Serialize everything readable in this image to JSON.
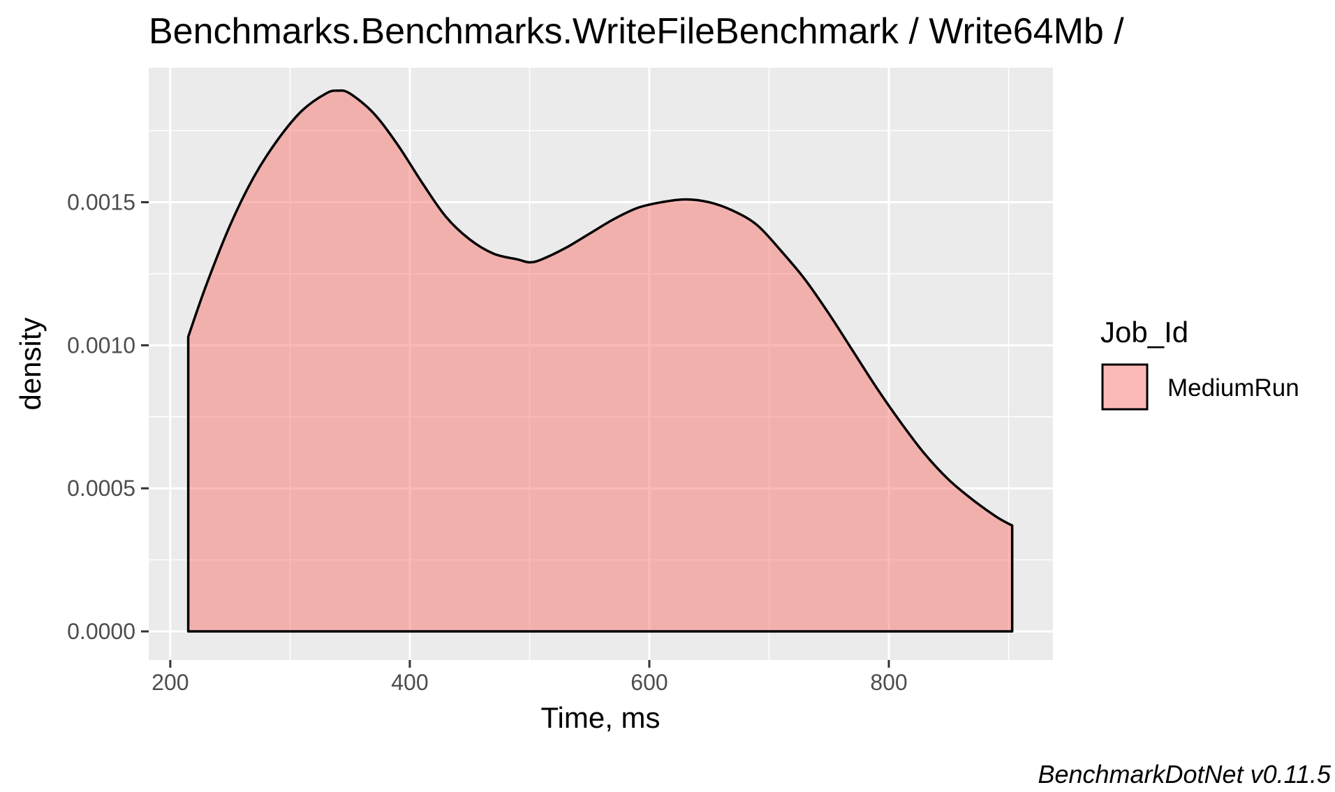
{
  "chart_data": {
    "type": "area",
    "title": "Benchmarks.Benchmarks.WriteFileBenchmark / Write64Mb /",
    "xlabel": "Time, ms",
    "ylabel": "density",
    "caption": "BenchmarkDotNet v0.11.5",
    "xlim": [
      182,
      937
    ],
    "ylim": [
      -0.0001,
      0.00197
    ],
    "x_ticks": [
      200,
      400,
      600,
      800
    ],
    "x_tick_labels": [
      "200",
      "400",
      "600",
      "800"
    ],
    "y_ticks": [
      0,
      0.0005,
      0.001,
      0.0015
    ],
    "y_tick_labels": [
      "0.0000",
      "0.0005",
      "0.0010",
      "0.0015"
    ],
    "grid": true,
    "legend": {
      "title": "Job_Id",
      "position": "right",
      "entries": [
        "MediumRun"
      ]
    },
    "series": [
      {
        "name": "MediumRun",
        "fill": "#F8766D",
        "fill_opacity": 0.5,
        "outline": "#000000",
        "x": [
          215,
          230,
          250,
          270,
          290,
          310,
          330,
          340,
          350,
          370,
          390,
          410,
          430,
          450,
          470,
          490,
          500,
          510,
          530,
          550,
          570,
          590,
          610,
          630,
          650,
          670,
          690,
          710,
          730,
          750,
          770,
          790,
          810,
          830,
          850,
          870,
          890,
          903
        ],
        "y": [
          0.00103,
          0.00121,
          0.00142,
          0.00159,
          0.00172,
          0.00182,
          0.00188,
          0.00189,
          0.00188,
          0.00181,
          0.0017,
          0.00157,
          0.00145,
          0.00137,
          0.00132,
          0.0013,
          0.00129,
          0.0013,
          0.00134,
          0.00139,
          0.00144,
          0.00148,
          0.0015,
          0.00151,
          0.0015,
          0.00147,
          0.00142,
          0.00133,
          0.00123,
          0.00111,
          0.00098,
          0.00085,
          0.00073,
          0.00062,
          0.00053,
          0.00046,
          0.0004,
          0.00037
        ]
      }
    ]
  }
}
